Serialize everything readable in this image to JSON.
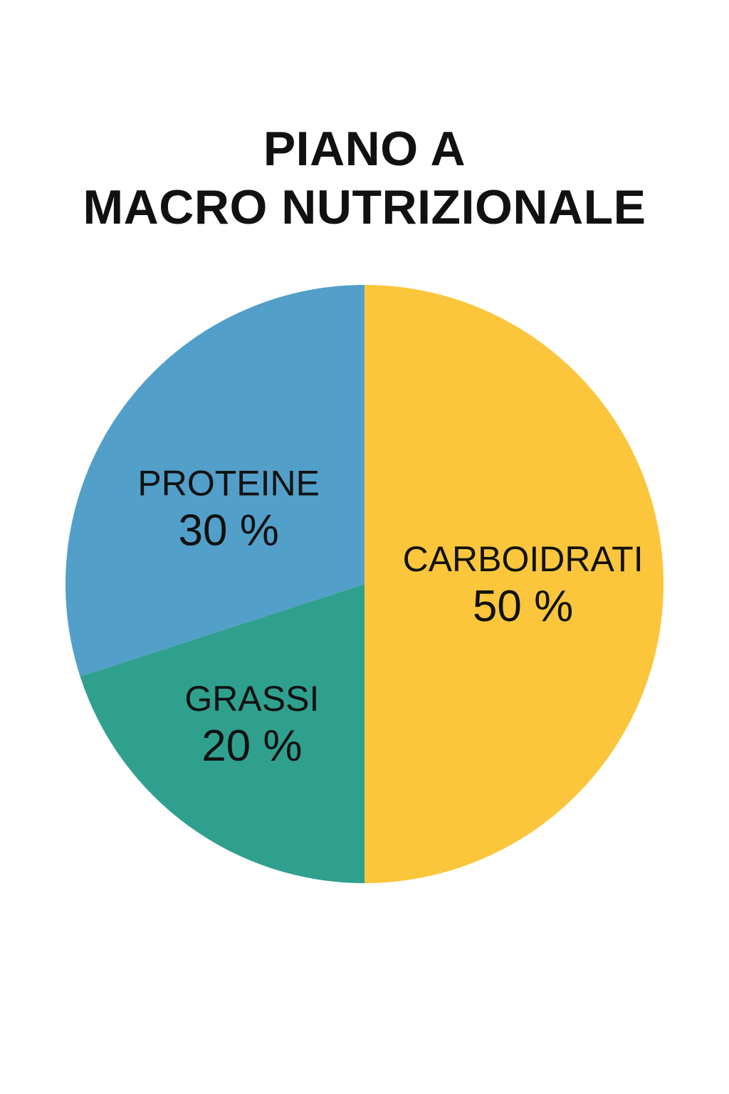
{
  "chart_data": {
    "type": "pie",
    "title_lines": [
      "PIANO A",
      "MACRO NUTRIZIONALE"
    ],
    "slices": [
      {
        "label": "CARBOIDRATI",
        "value": 50,
        "value_label": "50 %",
        "color": "#FBC63B"
      },
      {
        "label": "GRASSI",
        "value": 20,
        "value_label": "20 %",
        "color": "#30A08E"
      },
      {
        "label": "PROTEINE",
        "value": 30,
        "value_label": "30 %",
        "color": "#529FC9"
      }
    ]
  }
}
